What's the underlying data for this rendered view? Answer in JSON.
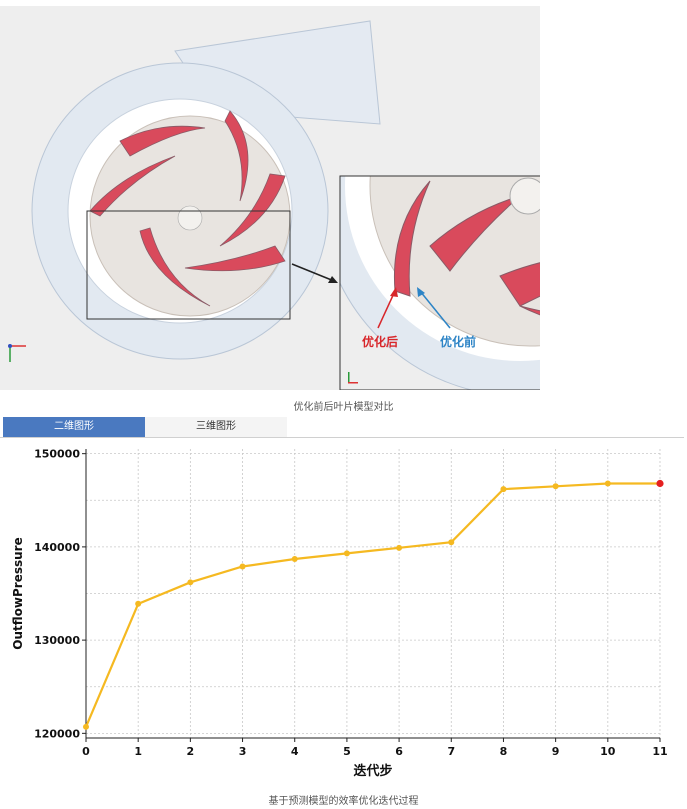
{
  "captions": {
    "figure1": "优化前后叶片模型对比",
    "figure2": "基于预测模型的效率优化迭代过程"
  },
  "tabs": [
    {
      "label": "二维图形",
      "active": true
    },
    {
      "label": "三维图形",
      "active": false
    }
  ],
  "image_labels": {
    "after": "优化后",
    "before": "优化前"
  },
  "colors": {
    "line": "#f5b921",
    "last_point": "#e52020",
    "after_label": "#d8262a",
    "before_label": "#2d84c6",
    "tab_active": "#4a79c0",
    "blade": "#d94a5c",
    "volute": "#dfe6ef"
  },
  "chart_data": {
    "type": "line",
    "title": "",
    "xlabel": "迭代步",
    "ylabel": "OutflowPressure",
    "x": [
      0,
      1,
      2,
      3,
      4,
      5,
      6,
      7,
      8,
      9,
      10,
      11
    ],
    "series": [
      {
        "values": [
          120700,
          133900,
          136200,
          137900,
          138700,
          139300,
          139900,
          140500,
          146200,
          146500,
          146800,
          146800
        ]
      }
    ],
    "xlim": [
      0,
      11
    ],
    "ylim": [
      119500,
      150500
    ],
    "yticks": [
      120000,
      130000,
      140000,
      150000
    ],
    "xticks": [
      0,
      1,
      2,
      3,
      4,
      5,
      6,
      7,
      8,
      9,
      10,
      11
    ],
    "grid": true,
    "legend": "none"
  }
}
